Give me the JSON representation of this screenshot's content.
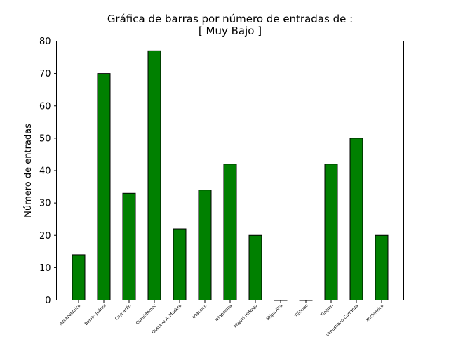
{
  "chart_data": {
    "type": "bar",
    "title": "Gráfica de barras por número de entradas de :",
    "subtitle": "[ Muy Bajo ]",
    "xlabel": "",
    "ylabel": "Número de entradas",
    "categories": [
      "Azcapotzalco",
      "Benito Juárez",
      "Coyoacán",
      "Cuauhtémoc",
      "Gustavo A. Madero",
      "Iztacalco",
      "Iztapalapa",
      "Miguel Hidalgo",
      "Milpa Alta",
      "Tláhuac",
      "Tlalpan",
      "Venustiano Carranza",
      "Xochimilco"
    ],
    "values": [
      14,
      70,
      33,
      77,
      22,
      34,
      42,
      20,
      0,
      0,
      42,
      50,
      20
    ],
    "ylim": [
      0,
      80
    ],
    "yticks": [
      0,
      10,
      20,
      30,
      40,
      50,
      60,
      70,
      80
    ],
    "bar_color": "#008000",
    "edge_color": "#000000",
    "grid": false,
    "legend": "none"
  }
}
